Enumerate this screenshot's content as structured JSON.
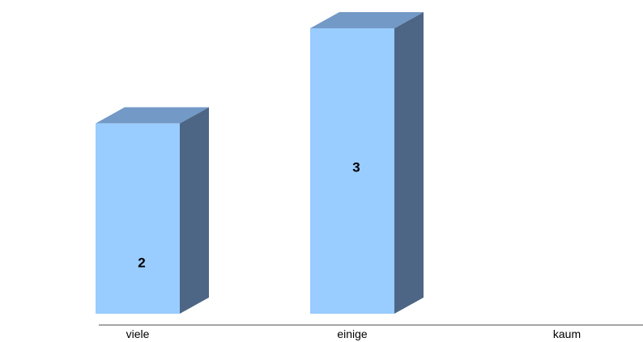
{
  "chart_data": {
    "type": "bar",
    "style": "3d-column",
    "categories": [
      "viele",
      "einige",
      "kaum"
    ],
    "values": [
      2,
      3,
      0
    ],
    "data_labels": [
      "2",
      "3",
      ""
    ],
    "title": "",
    "xlabel": "",
    "ylabel": "",
    "ylim": [
      0,
      3
    ],
    "grid": false,
    "legend": "none",
    "colors": {
      "bar_front": "#99ccff",
      "bar_top": "#7399c6",
      "bar_side": "#4d6685",
      "axis": "#a6a6a6"
    }
  }
}
